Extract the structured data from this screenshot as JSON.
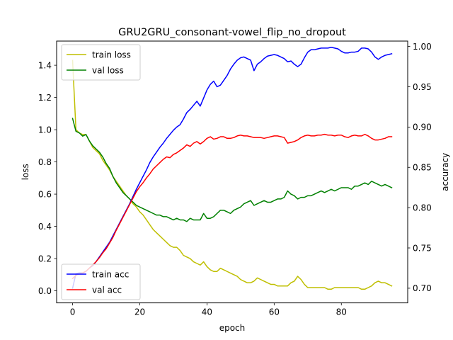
{
  "chart_data": {
    "type": "line",
    "title": "GRU2GRU_consonant-vowel_flip_no_dropout",
    "xlabel": "epoch",
    "ylabel_left": "loss",
    "ylabel_right": "accuracy",
    "xlim": [
      -4.75,
      99.75
    ],
    "ylim_left": [
      -0.075,
      1.55
    ],
    "ylim_right": [
      0.6818,
      1.0067
    ],
    "xticks": [
      0,
      20,
      40,
      60,
      80
    ],
    "yticks_left": [
      0.0,
      0.2,
      0.4,
      0.6,
      0.8,
      1.0,
      1.2,
      1.4
    ],
    "yticks_right": [
      0.7,
      0.75,
      0.8,
      0.85,
      0.9,
      0.95,
      1.0
    ],
    "ytick_labels_left": [
      "0.0",
      "0.2",
      "0.4",
      "0.6",
      "0.8",
      "1.0",
      "1.2",
      "1.4"
    ],
    "ytick_labels_right": [
      "0.70",
      "0.75",
      "0.80",
      "0.85",
      "0.90",
      "0.95",
      "1.00"
    ],
    "legend_left": {
      "placement": "upper left",
      "entries": [
        "train loss",
        "val loss"
      ]
    },
    "legend_right": {
      "placement": "lower left",
      "entries": [
        "train acc",
        "val acc"
      ]
    },
    "grid": false,
    "x": [
      0,
      1,
      2,
      3,
      4,
      5,
      6,
      7,
      8,
      9,
      10,
      11,
      12,
      13,
      14,
      15,
      16,
      17,
      18,
      19,
      20,
      21,
      22,
      23,
      24,
      25,
      26,
      27,
      28,
      29,
      30,
      31,
      32,
      33,
      34,
      35,
      36,
      37,
      38,
      39,
      40,
      41,
      42,
      43,
      44,
      45,
      46,
      47,
      48,
      49,
      50,
      51,
      52,
      53,
      54,
      55,
      56,
      57,
      58,
      59,
      60,
      61,
      62,
      63,
      64,
      65,
      66,
      67,
      68,
      69,
      70,
      71,
      72,
      73,
      74,
      75,
      76,
      77,
      78,
      79,
      80,
      81,
      82,
      83,
      84,
      85,
      86,
      87,
      88,
      89,
      90,
      91,
      92,
      93,
      94,
      95
    ],
    "series": [
      {
        "name": "train loss",
        "axis": "left",
        "color": "#bfbf00",
        "values": [
          1.43,
          1.0,
          0.98,
          0.97,
          0.97,
          0.93,
          0.89,
          0.87,
          0.85,
          0.81,
          0.78,
          0.75,
          0.71,
          0.68,
          0.65,
          0.62,
          0.59,
          0.57,
          0.54,
          0.52,
          0.49,
          0.47,
          0.44,
          0.41,
          0.38,
          0.36,
          0.34,
          0.32,
          0.3,
          0.28,
          0.27,
          0.27,
          0.25,
          0.22,
          0.21,
          0.2,
          0.18,
          0.17,
          0.16,
          0.18,
          0.15,
          0.13,
          0.12,
          0.12,
          0.14,
          0.13,
          0.12,
          0.11,
          0.1,
          0.09,
          0.07,
          0.06,
          0.05,
          0.05,
          0.06,
          0.08,
          0.07,
          0.06,
          0.05,
          0.04,
          0.04,
          0.03,
          0.03,
          0.03,
          0.03,
          0.05,
          0.06,
          0.09,
          0.07,
          0.04,
          0.02,
          0.02,
          0.02,
          0.02,
          0.02,
          0.02,
          0.01,
          0.01,
          0.02,
          0.02,
          0.02,
          0.02,
          0.02,
          0.02,
          0.02,
          0.02,
          0.01,
          0.01,
          0.02,
          0.03,
          0.05,
          0.06,
          0.05,
          0.05,
          0.04,
          0.03
        ]
      },
      {
        "name": "val loss",
        "axis": "left",
        "color": "#008000",
        "values": [
          1.07,
          0.99,
          0.98,
          0.96,
          0.97,
          0.93,
          0.9,
          0.88,
          0.86,
          0.83,
          0.79,
          0.76,
          0.71,
          0.67,
          0.64,
          0.61,
          0.59,
          0.57,
          0.55,
          0.53,
          0.52,
          0.51,
          0.5,
          0.49,
          0.48,
          0.47,
          0.47,
          0.46,
          0.46,
          0.45,
          0.44,
          0.45,
          0.44,
          0.44,
          0.43,
          0.45,
          0.44,
          0.44,
          0.44,
          0.48,
          0.45,
          0.45,
          0.46,
          0.48,
          0.5,
          0.5,
          0.49,
          0.48,
          0.5,
          0.51,
          0.52,
          0.54,
          0.55,
          0.56,
          0.53,
          0.54,
          0.55,
          0.56,
          0.55,
          0.55,
          0.56,
          0.57,
          0.57,
          0.58,
          0.62,
          0.6,
          0.59,
          0.57,
          0.58,
          0.58,
          0.59,
          0.59,
          0.6,
          0.61,
          0.62,
          0.61,
          0.62,
          0.63,
          0.62,
          0.63,
          0.64,
          0.64,
          0.64,
          0.63,
          0.65,
          0.65,
          0.66,
          0.67,
          0.66,
          0.68,
          0.67,
          0.66,
          0.65,
          0.66,
          0.65,
          0.64
        ]
      },
      {
        "name": "train acc",
        "axis": "right",
        "color": "#0000ff",
        "values": [
          0.7,
          0.718,
          0.719,
          0.719,
          0.721,
          0.725,
          0.728,
          0.733,
          0.739,
          0.745,
          0.751,
          0.757,
          0.765,
          0.773,
          0.781,
          0.789,
          0.797,
          0.805,
          0.814,
          0.823,
          0.831,
          0.839,
          0.847,
          0.856,
          0.863,
          0.869,
          0.875,
          0.88,
          0.886,
          0.891,
          0.896,
          0.9,
          0.903,
          0.91,
          0.918,
          0.922,
          0.927,
          0.932,
          0.926,
          0.936,
          0.946,
          0.953,
          0.957,
          0.95,
          0.952,
          0.958,
          0.964,
          0.972,
          0.978,
          0.983,
          0.986,
          0.987,
          0.985,
          0.983,
          0.97,
          0.978,
          0.981,
          0.985,
          0.988,
          0.989,
          0.99,
          0.989,
          0.987,
          0.985,
          0.981,
          0.982,
          0.978,
          0.975,
          0.978,
          0.986,
          0.993,
          0.996,
          0.996,
          0.997,
          0.998,
          0.998,
          0.998,
          0.999,
          0.998,
          0.997,
          0.994,
          0.992,
          0.992,
          0.993,
          0.993,
          0.994,
          0.998,
          0.998,
          0.997,
          0.993,
          0.987,
          0.984,
          0.987,
          0.989,
          0.99,
          0.991
        ]
      },
      {
        "name": "val acc",
        "axis": "right",
        "color": "#ff0000",
        "values": [
          0.712,
          0.716,
          0.718,
          0.719,
          0.721,
          0.725,
          0.729,
          0.733,
          0.738,
          0.744,
          0.749,
          0.756,
          0.763,
          0.772,
          0.78,
          0.788,
          0.796,
          0.804,
          0.812,
          0.82,
          0.826,
          0.831,
          0.837,
          0.842,
          0.848,
          0.852,
          0.856,
          0.86,
          0.863,
          0.862,
          0.866,
          0.868,
          0.871,
          0.874,
          0.878,
          0.876,
          0.88,
          0.882,
          0.879,
          0.882,
          0.886,
          0.888,
          0.885,
          0.886,
          0.888,
          0.888,
          0.886,
          0.886,
          0.887,
          0.889,
          0.89,
          0.889,
          0.889,
          0.888,
          0.887,
          0.887,
          0.887,
          0.886,
          0.887,
          0.888,
          0.889,
          0.889,
          0.888,
          0.887,
          0.88,
          0.881,
          0.882,
          0.884,
          0.887,
          0.889,
          0.89,
          0.889,
          0.889,
          0.89,
          0.89,
          0.891,
          0.89,
          0.89,
          0.889,
          0.89,
          0.89,
          0.888,
          0.887,
          0.889,
          0.89,
          0.889,
          0.889,
          0.891,
          0.889,
          0.886,
          0.884,
          0.884,
          0.885,
          0.886,
          0.888,
          0.888
        ]
      }
    ]
  }
}
